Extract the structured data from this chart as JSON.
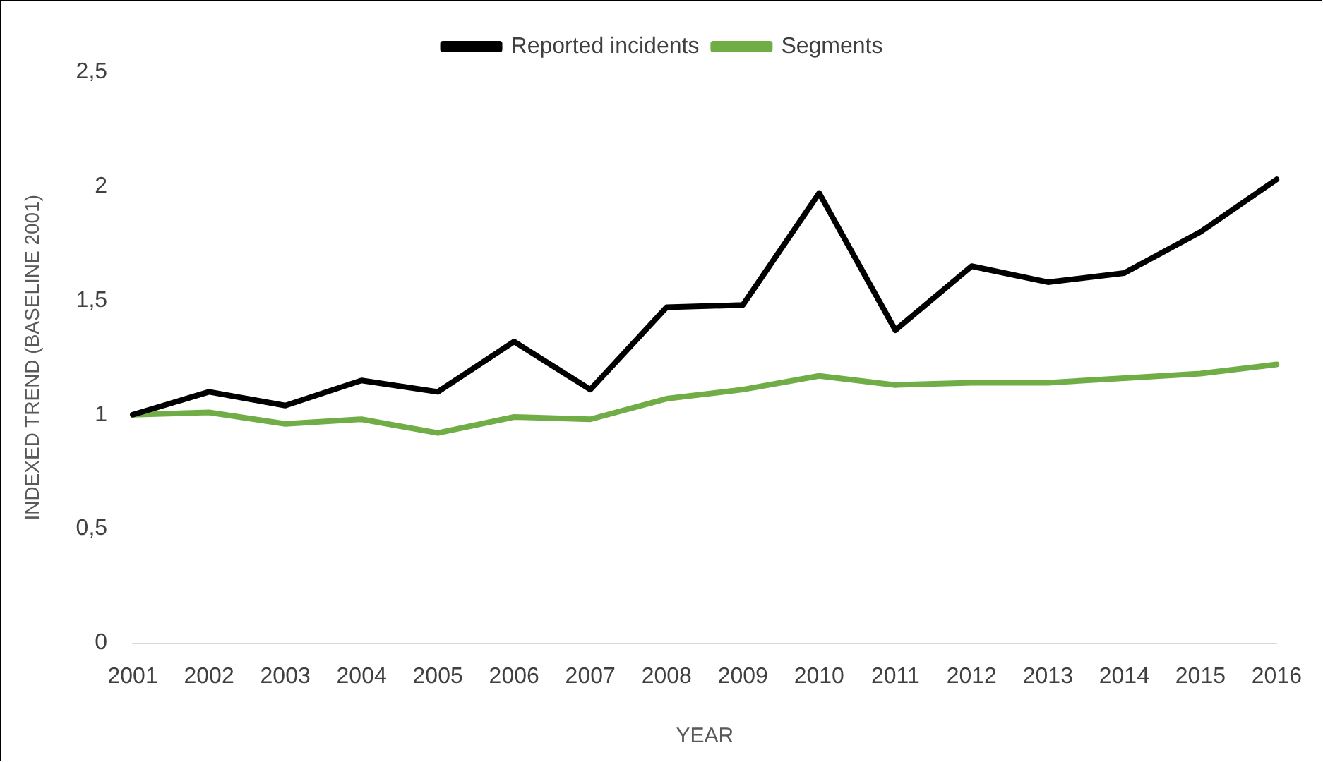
{
  "chart_data": {
    "type": "line",
    "xlabel": "YEAR",
    "ylabel": "INDEXED TREND (BASELINE 2001)",
    "categories": [
      "2001",
      "2002",
      "2003",
      "2004",
      "2005",
      "2006",
      "2007",
      "2008",
      "2009",
      "2010",
      "2011",
      "2012",
      "2013",
      "2014",
      "2015",
      "2016"
    ],
    "series": [
      {
        "name": "Reported incidents",
        "color": "#000000",
        "values": [
          1.0,
          1.1,
          1.04,
          1.15,
          1.1,
          1.32,
          1.11,
          1.47,
          1.48,
          1.97,
          1.37,
          1.65,
          1.58,
          1.62,
          1.8,
          2.03
        ]
      },
      {
        "name": "Segments",
        "color": "#70ad47",
        "values": [
          1.0,
          1.01,
          0.96,
          0.98,
          0.92,
          0.99,
          0.98,
          1.07,
          1.11,
          1.17,
          1.13,
          1.14,
          1.14,
          1.16,
          1.18,
          1.22
        ]
      }
    ],
    "ylim": [
      0,
      2.5
    ],
    "yticks": [
      0,
      {
        "value": 0.5,
        "label": "0,5"
      },
      1,
      {
        "value": 1.5,
        "label": "1,5"
      },
      2,
      {
        "value": 2.5,
        "label": "2,5"
      }
    ],
    "grid": false,
    "legend": "top",
    "marker": "none",
    "line_style": "solid"
  }
}
